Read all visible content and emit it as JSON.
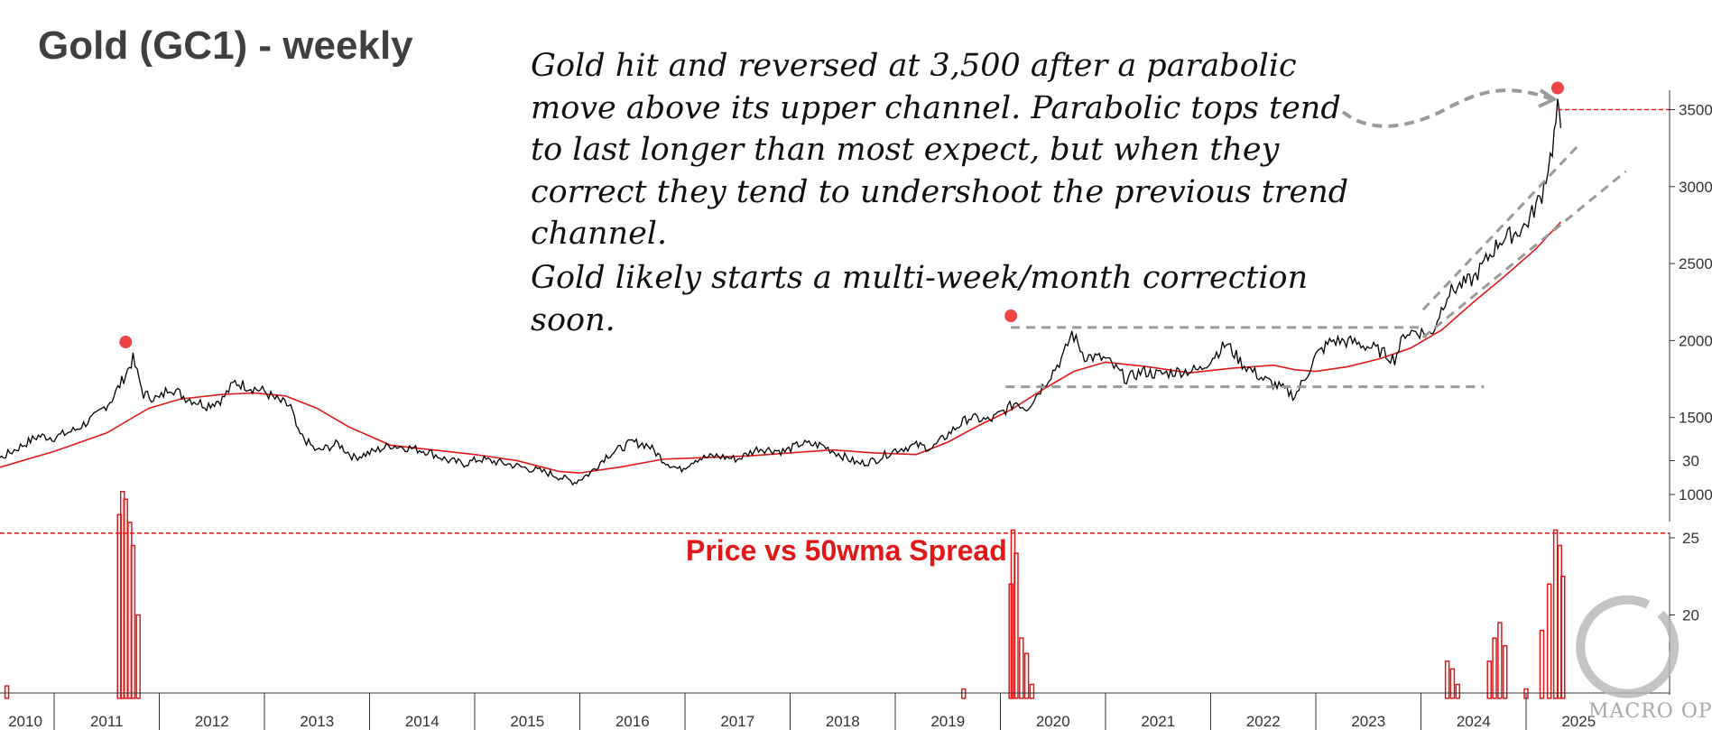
{
  "title": "Gold (GC1) - weekly",
  "notes": [
    "Gold hit and reversed at 3,500 after a parabolic move above its upper channel. Parabolic tops tend to last longer than most expect, but when they correct they tend to undershoot the previous trend channel.",
    "Gold likely starts a multi-week/month correction soon."
  ],
  "watermark": "MACRO OPS",
  "colors": {
    "price": "#000000",
    "ma": "#e01818",
    "channel": "#9a9a9a",
    "marker": "#ee4444"
  },
  "chart_data": [
    {
      "type": "line",
      "title": "",
      "x_labels": [
        "2010",
        "2011",
        "2012",
        "2013",
        "2014",
        "2015",
        "2016",
        "2017",
        "2018",
        "2019",
        "2020",
        "2021",
        "2022",
        "2023",
        "2024",
        "2025"
      ],
      "yticks": [
        1000,
        1500,
        2000,
        2500,
        3000,
        3500
      ],
      "ylim": [
        880,
        3600
      ],
      "series": [
        {
          "role": "price",
          "x": [
            2009.9,
            2010.1,
            2010.3,
            2010.5,
            2010.7,
            2010.85,
            2011.0,
            2011.2,
            2011.4,
            2011.55,
            2011.68,
            2011.75,
            2011.85,
            2012.0,
            2012.1,
            2012.25,
            2012.45,
            2012.6,
            2012.72,
            2012.85,
            2013.0,
            2013.1,
            2013.25,
            2013.32,
            2013.5,
            2013.7,
            2013.85,
            2014.0,
            2014.2,
            2014.4,
            2014.55,
            2014.75,
            2014.9,
            2015.05,
            2015.3,
            2015.5,
            2015.7,
            2015.95,
            2016.1,
            2016.25,
            2016.5,
            2016.65,
            2016.8,
            2016.95,
            2017.1,
            2017.3,
            2017.5,
            2017.7,
            2017.95,
            2018.1,
            2018.3,
            2018.5,
            2018.65,
            2018.8,
            2019.0,
            2019.2,
            2019.35,
            2019.55,
            2019.7,
            2019.9,
            2020.05,
            2020.15,
            2020.25,
            2020.4,
            2020.6,
            2020.68,
            2020.8,
            2021.0,
            2021.2,
            2021.35,
            2021.5,
            2021.7,
            2021.9,
            2022.0,
            2022.15,
            2022.3,
            2022.5,
            2022.65,
            2022.8,
            2022.9,
            2023.0,
            2023.15,
            2023.35,
            2023.55,
            2023.75,
            2023.85,
            2023.95,
            2024.1,
            2024.25,
            2024.35,
            2024.5,
            2024.6,
            2024.75,
            2024.9,
            2025.0,
            2025.15,
            2025.25,
            2025.3,
            2025.33
          ],
          "y": [
            1130,
            1160,
            1200,
            1240,
            1320,
            1380,
            1370,
            1420,
            1510,
            1620,
            1780,
            1880,
            1650,
            1620,
            1700,
            1630,
            1580,
            1620,
            1730,
            1700,
            1670,
            1620,
            1570,
            1400,
            1280,
            1330,
            1240,
            1270,
            1320,
            1300,
            1280,
            1220,
            1200,
            1230,
            1200,
            1170,
            1140,
            1080,
            1140,
            1250,
            1340,
            1320,
            1220,
            1160,
            1230,
            1250,
            1230,
            1300,
            1280,
            1330,
            1320,
            1250,
            1200,
            1220,
            1290,
            1320,
            1300,
            1420,
            1500,
            1480,
            1550,
            1600,
            1560,
            1700,
            1900,
            2050,
            1900,
            1880,
            1750,
            1800,
            1780,
            1800,
            1810,
            1880,
            1980,
            1850,
            1750,
            1700,
            1640,
            1760,
            1900,
            2000,
            1990,
            1950,
            1880,
            2050,
            2060,
            2040,
            2300,
            2350,
            2400,
            2500,
            2650,
            2700,
            2750,
            2950,
            3250,
            3500,
            3380
          ]
        },
        {
          "role": "ma50",
          "x": [
            2009.9,
            2010.5,
            2011.0,
            2011.5,
            2011.9,
            2012.2,
            2012.6,
            2012.9,
            2013.2,
            2013.5,
            2013.8,
            2014.2,
            2014.6,
            2015.0,
            2015.4,
            2015.8,
            2016.0,
            2016.4,
            2016.8,
            2017.2,
            2017.6,
            2018.0,
            2018.4,
            2018.8,
            2019.2,
            2019.5,
            2019.8,
            2020.1,
            2020.4,
            2020.7,
            2021.0,
            2021.4,
            2021.8,
            2022.2,
            2022.6,
            2022.8,
            2023.0,
            2023.3,
            2023.6,
            2023.9,
            2024.2,
            2024.5,
            2024.8,
            2025.1,
            2025.33
          ],
          "y": [
            1100,
            1180,
            1280,
            1400,
            1560,
            1620,
            1650,
            1660,
            1640,
            1560,
            1440,
            1320,
            1290,
            1260,
            1220,
            1150,
            1140,
            1180,
            1230,
            1240,
            1250,
            1270,
            1290,
            1270,
            1260,
            1340,
            1450,
            1550,
            1680,
            1800,
            1860,
            1830,
            1790,
            1820,
            1840,
            1810,
            1800,
            1830,
            1880,
            1950,
            2070,
            2250,
            2420,
            2600,
            2770
          ]
        }
      ],
      "annotations": {
        "hline": 3500,
        "channel_top": 2085,
        "channel_bottom": 1700,
        "peaks": [
          {
            "x": 2011.68,
            "y": 1920
          },
          {
            "x": 2020.1,
            "y": 2090
          },
          {
            "x": 2025.3,
            "y": 3570
          }
        ]
      }
    },
    {
      "type": "bar",
      "title": "Price vs 50wma Spread",
      "yticks": [
        20,
        25,
        30
      ],
      "ylim": [
        14.6,
        33.5
      ],
      "reference": 25.3,
      "bars": [
        {
          "x": 2010.1,
          "y": 15.0
        },
        {
          "x": 2010.2,
          "y": 15.0
        },
        {
          "x": 2010.55,
          "y": 15.4
        },
        {
          "x": 2011.62,
          "y": 26.5
        },
        {
          "x": 2011.65,
          "y": 28.0
        },
        {
          "x": 2011.68,
          "y": 27.5
        },
        {
          "x": 2011.72,
          "y": 26.0
        },
        {
          "x": 2011.75,
          "y": 24.5
        },
        {
          "x": 2011.8,
          "y": 20.0
        },
        {
          "x": 2019.65,
          "y": 15.2
        },
        {
          "x": 2020.1,
          "y": 22.0
        },
        {
          "x": 2020.12,
          "y": 25.5
        },
        {
          "x": 2020.15,
          "y": 24.0
        },
        {
          "x": 2020.2,
          "y": 18.5
        },
        {
          "x": 2020.25,
          "y": 17.5
        },
        {
          "x": 2020.3,
          "y": 15.5
        },
        {
          "x": 2024.25,
          "y": 17.0
        },
        {
          "x": 2024.3,
          "y": 16.5
        },
        {
          "x": 2024.35,
          "y": 15.5
        },
        {
          "x": 2024.65,
          "y": 17.0
        },
        {
          "x": 2024.7,
          "y": 18.5
        },
        {
          "x": 2024.75,
          "y": 19.5
        },
        {
          "x": 2024.8,
          "y": 18.0
        },
        {
          "x": 2025.0,
          "y": 15.2
        },
        {
          "x": 2025.15,
          "y": 19.0
        },
        {
          "x": 2025.22,
          "y": 22.0
        },
        {
          "x": 2025.28,
          "y": 25.5
        },
        {
          "x": 2025.32,
          "y": 24.5
        },
        {
          "x": 2025.35,
          "y": 22.5
        }
      ]
    }
  ]
}
